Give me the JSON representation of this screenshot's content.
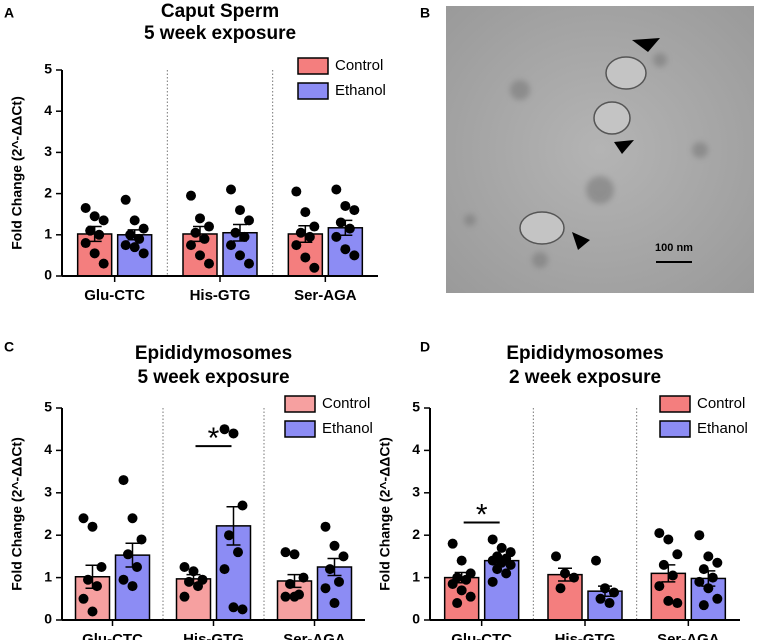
{
  "chart_data": [
    {
      "type": "bar",
      "panel": "A",
      "title": "Caput Sperm",
      "subtitle": "5 week exposure",
      "y_label": "Fold Change (2^-ΔΔCt)",
      "categories": [
        "Glu-CTC",
        "His-GTG",
        "Ser-AGA"
      ],
      "ylim": [
        0,
        5
      ],
      "yticks": [
        0,
        1,
        2,
        3,
        4,
        5
      ],
      "legend": "upper right",
      "series": [
        {
          "name": "Control",
          "color": "#f47e7e",
          "values": [
            1.02,
            1.02,
            1.02
          ],
          "errors": [
            0.18,
            0.18,
            0.2
          ],
          "points": [
            [
              1.65,
              1.45,
              1.35,
              1.1,
              1.0,
              0.8,
              0.55,
              0.3
            ],
            [
              1.95,
              1.4,
              1.2,
              1.05,
              0.9,
              0.75,
              0.5,
              0.3
            ],
            [
              2.05,
              1.55,
              1.2,
              1.05,
              0.95,
              0.75,
              0.45,
              0.2
            ]
          ]
        },
        {
          "name": "Ethanol",
          "color": "#8c8cf4",
          "values": [
            1.0,
            1.05,
            1.17
          ],
          "errors": [
            0.12,
            0.2,
            0.18
          ],
          "points": [
            [
              1.85,
              1.35,
              1.15,
              1.0,
              0.9,
              0.75,
              0.7,
              0.55
            ],
            [
              2.1,
              1.6,
              1.35,
              1.05,
              0.95,
              0.75,
              0.5,
              0.3
            ],
            [
              2.1,
              1.7,
              1.6,
              1.3,
              1.15,
              0.95,
              0.65,
              0.5
            ]
          ]
        }
      ]
    },
    {
      "type": "bar",
      "panel": "C",
      "title": "Epididymosomes",
      "subtitle": "5 week exposure",
      "y_label": "Fold Change (2^-ΔΔCt)",
      "categories": [
        "Glu-CTC",
        "His-GTG",
        "Ser-AGA"
      ],
      "ylim": [
        0,
        5
      ],
      "yticks": [
        0,
        1,
        2,
        3,
        4,
        5
      ],
      "legend": "upper right",
      "annotation": {
        "text": "*",
        "category": 1
      },
      "series": [
        {
          "name": "Control",
          "color": "#f6a0a0",
          "values": [
            1.02,
            0.97,
            0.92
          ],
          "errors": [
            0.27,
            0.1,
            0.15
          ],
          "points": [
            [
              2.4,
              2.2,
              1.25,
              0.95,
              0.8,
              0.5,
              0.2
            ],
            [
              1.25,
              1.15,
              0.95,
              0.9,
              0.8,
              0.55
            ],
            [
              1.6,
              1.55,
              1.0,
              0.85,
              0.6,
              0.55,
              0.55
            ]
          ]
        },
        {
          "name": "Ethanol",
          "color": "#8c8cf4",
          "values": [
            1.53,
            2.22,
            1.25
          ],
          "errors": [
            0.28,
            0.45,
            0.2
          ],
          "points": [
            [
              3.3,
              2.4,
              1.9,
              1.55,
              1.25,
              0.95,
              0.8
            ],
            [
              4.5,
              4.4,
              2.7,
              2.0,
              1.6,
              1.2,
              0.3,
              0.25
            ],
            [
              2.2,
              1.75,
              1.5,
              1.2,
              0.9,
              0.75,
              0.4
            ]
          ]
        }
      ]
    },
    {
      "type": "bar",
      "panel": "D",
      "title": "Epididymosomes",
      "subtitle": "2 week exposure",
      "y_label": "Fold Change (2^-ΔΔCt)",
      "categories": [
        "Glu-CTC",
        "His-GTG",
        "Ser-AGA"
      ],
      "ylim": [
        0,
        5
      ],
      "yticks": [
        0,
        1,
        2,
        3,
        4,
        5
      ],
      "legend": "upper right",
      "annotation": {
        "text": "*",
        "category": 0
      },
      "series": [
        {
          "name": "Control",
          "color": "#f47e7e",
          "values": [
            1.0,
            1.07,
            1.1
          ],
          "errors": [
            0.12,
            0.15,
            0.2
          ],
          "points": [
            [
              1.8,
              1.4,
              1.1,
              1.0,
              0.95,
              0.85,
              0.7,
              0.55,
              0.4
            ],
            [
              1.5,
              1.1,
              1.0,
              0.75
            ],
            [
              2.05,
              1.9,
              1.55,
              1.3,
              1.05,
              0.8,
              0.45,
              0.4
            ]
          ]
        },
        {
          "name": "Ethanol",
          "color": "#8c8cf4",
          "values": [
            1.4,
            0.68,
            0.98
          ],
          "errors": [
            0.08,
            0.12,
            0.18
          ],
          "points": [
            [
              1.9,
              1.7,
              1.6,
              1.5,
              1.45,
              1.4,
              1.35,
              1.3,
              1.2,
              1.1,
              0.9
            ],
            [
              1.4,
              0.75,
              0.65,
              0.5,
              0.4
            ],
            [
              2.0,
              1.5,
              1.35,
              1.2,
              1.0,
              0.9,
              0.75,
              0.5,
              0.35
            ]
          ]
        }
      ]
    }
  ],
  "micrograph": {
    "panel": "B",
    "scale_bar": "100 nm"
  }
}
